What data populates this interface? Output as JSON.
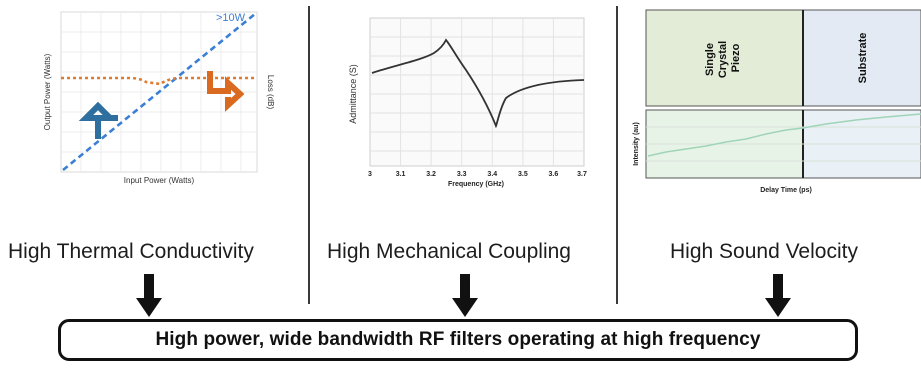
{
  "panels": [
    {
      "heading": "High Thermal Conductivity",
      "chart": {
        "ylabel": "Output Power (Watts)",
        "xlabel": "Input Power (Watts)",
        "ylabel_right": "Loss (dB)",
        "annotation": ">10W",
        "line_color": "#3a7fd4",
        "loss_color": "#e07a2e"
      }
    },
    {
      "heading": "High Mechanical Coupling",
      "chart": {
        "ylabel": "Admittance (S)",
        "xlabel": "Frequency (GHz)",
        "ticks": [
          "3",
          "3.1",
          "3.2",
          "3.3",
          "3.4",
          "3.5",
          "3.6",
          "3.7"
        ]
      }
    },
    {
      "heading": "High Sound Velocity",
      "chart": {
        "layer_left": [
          "Single",
          "Crystal",
          "Piezo"
        ],
        "layer_right": "Substrate",
        "ylabel": "Intensity (au)",
        "xlabel": "Delay Time (ps)"
      }
    }
  ],
  "result": "High power, wide bandwidth RF filters operating at high frequency"
}
